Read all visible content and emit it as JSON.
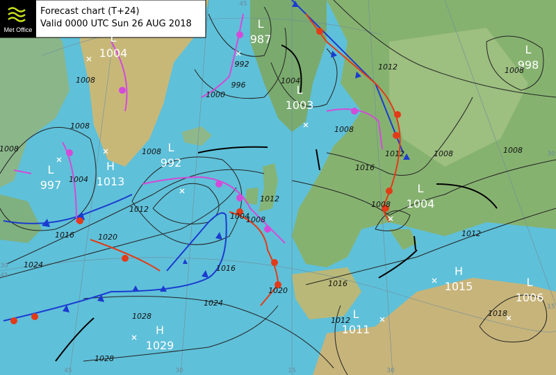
{
  "header": {
    "logo": "Met Office",
    "title": "Forecast chart (T+24)",
    "valid": "Valid 0000 UTC Sun 26 AUG 2018"
  },
  "centers": [
    {
      "type": "L",
      "pressure": "1004"
    },
    {
      "type": "L",
      "pressure": "987"
    },
    {
      "type": "L",
      "pressure": "1003"
    },
    {
      "type": "L",
      "pressure": "992"
    },
    {
      "type": "L",
      "pressure": "997"
    },
    {
      "type": "H",
      "pressure": "1013"
    },
    {
      "type": "L",
      "pressure": "998"
    },
    {
      "type": "L",
      "pressure": "1004"
    },
    {
      "type": "H",
      "pressure": "1015"
    },
    {
      "type": "L",
      "pressure": "1006"
    },
    {
      "type": "L",
      "pressure": "1011"
    },
    {
      "type": "H",
      "pressure": "1029"
    }
  ],
  "isobar_labels": [
    "1008",
    "1008",
    "1008",
    "1004",
    "1008",
    "1016",
    "1024",
    "1020",
    "1012",
    "1004",
    "1008",
    "1016",
    "1024",
    "1028",
    "1028",
    "992",
    "996",
    "1000",
    "1004",
    "1012",
    "1008",
    "1012",
    "1016",
    "1008",
    "1012",
    "1020",
    "1016",
    "1012",
    "1008",
    "1008",
    "1008",
    "1012",
    "1018"
  ],
  "grid_labels": [
    "45",
    "30",
    "45",
    "30",
    "45",
    "30",
    "15",
    "30",
    "15"
  ]
}
